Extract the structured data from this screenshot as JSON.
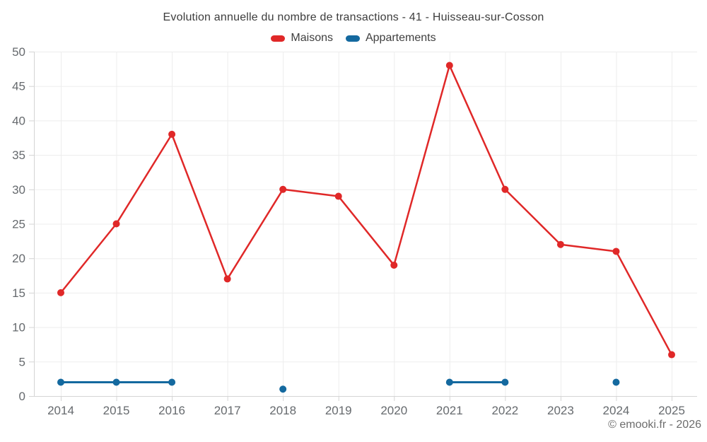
{
  "header": {
    "title": "Evolution annuelle du nombre de transactions - 41 - Huisseau-sur-Cosson",
    "legend": [
      {
        "label": "Maisons",
        "color": "#e02828"
      },
      {
        "label": "Appartements",
        "color": "#14699f"
      }
    ]
  },
  "footer": {
    "credit": "© emooki.fr - 2026"
  },
  "colors": {
    "maisons": "#e02828",
    "appartements": "#14699f",
    "grid": "#ededed",
    "axis": "#d4d4d4",
    "tick_text": "#666a6e",
    "title_text": "#3d3d3d"
  },
  "chart_data": {
    "type": "line",
    "title": "Evolution annuelle du nombre de transactions - 41 - Huisseau-sur-Cosson",
    "categories": [
      "2014",
      "2015",
      "2016",
      "2017",
      "2018",
      "2019",
      "2020",
      "2021",
      "2022",
      "2023",
      "2024",
      "2025"
    ],
    "series": [
      {
        "name": "Maisons",
        "color": "#e02828",
        "values": [
          15,
          25,
          38,
          17,
          30,
          29,
          19,
          48,
          30,
          22,
          21,
          6
        ]
      },
      {
        "name": "Appartements",
        "color": "#14699f",
        "values": [
          2,
          2,
          2,
          null,
          1,
          null,
          null,
          2,
          2,
          null,
          2,
          null
        ]
      }
    ],
    "xlabel": "",
    "ylabel": "",
    "ylim": [
      0,
      50
    ],
    "ytick_step": 5,
    "grid": true,
    "legend_position": "top",
    "annotations": [
      "© emooki.fr - 2026"
    ]
  }
}
